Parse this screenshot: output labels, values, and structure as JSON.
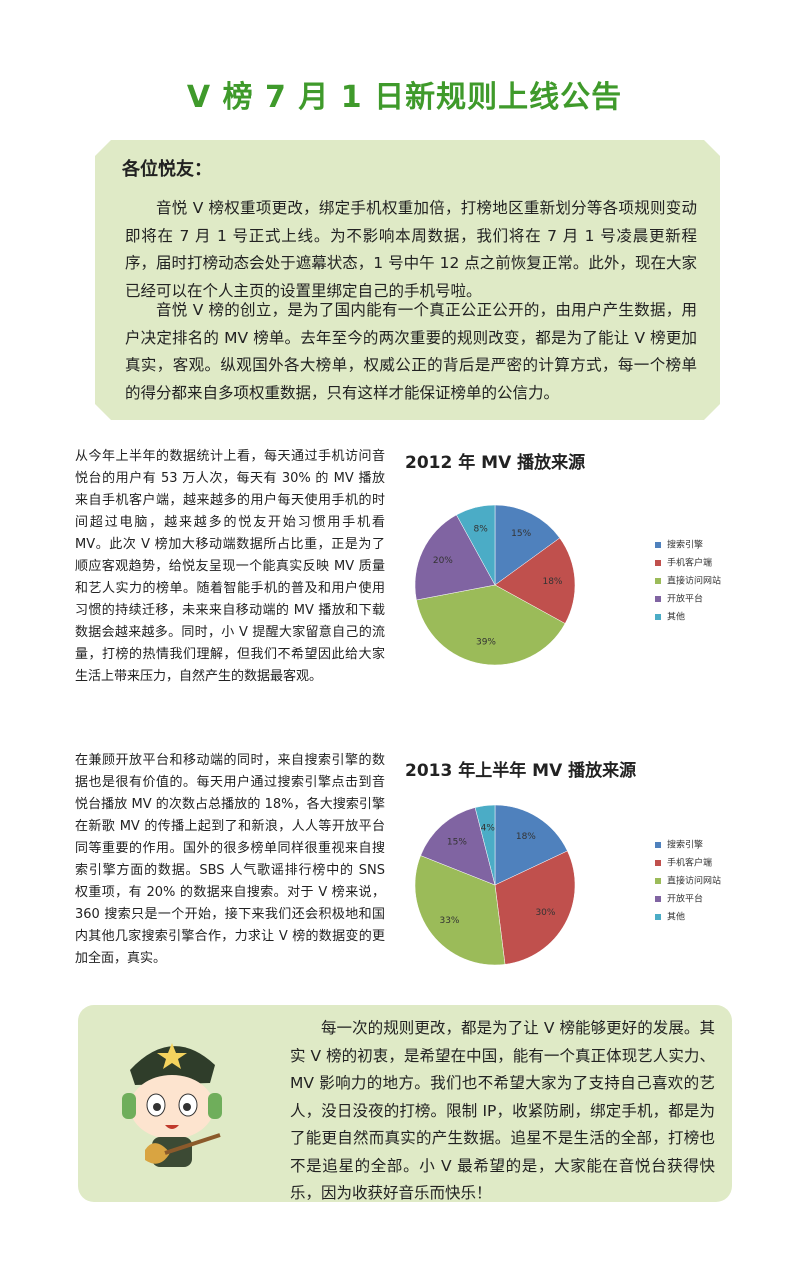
{
  "header": {
    "title": "V 榜 7 月 1 日新规则上线公告"
  },
  "intro": {
    "greeting": "各位悦友：",
    "paragraphs": [
      "音悦 V 榜权重项更改，绑定手机权重加倍，打榜地区重新划分等各项规则变动即将在 7 月 1 号正式上线。为不影响本周数据，我们将在 7 月 1 号凌晨更新程序，届时打榜动态会处于遮幕状态，1 号中午 12 点之前恢复正常。此外，现在大家已经可以在个人主页的设置里绑定自己的手机号啦。",
      "音悦 V 榜的创立，是为了国内能有一个真正公正公开的，由用户产生数据，用户决定排名的 MV 榜单。去年至今的两次重要的规则改变，都是为了能让 V 榜更加真实，客观。纵观国外各大榜单，权威公正的背后是严密的计算方式，每一个榜单的得分都来自多项权重数据，只有这样才能保证榜单的公信力。"
    ]
  },
  "sections": [
    "从今年上半年的数据统计上看，每天通过手机访问音悦台的用户有 53 万人次，每天有 30% 的 MV 播放来自手机客户端，越来越多的用户每天使用手机的时间超过电脑，越来越多的悦友开始习惯用手机看 MV。此次 V 榜加大移动端数据所占比重，正是为了顺应客观趋势，给悦友呈现一个能真实反映 MV 质量和艺人实力的榜单。随着智能手机的普及和用户使用习惯的持续迁移，未来来自移动端的 MV 播放和下载数据会越来越多。同时，小 V 提醒大家留意自己的流量，打榜的热情我们理解，但我们不希望因此给大家生活上带来压力，自然产生的数据最客观。",
    "在兼顾开放平台和移动端的同时，来自搜索引擎的数据也是很有价值的。每天用户通过搜索引擎点击到音悦台播放 MV 的次数占总播放的 18%，各大搜索引擎在新歌 MV 的传播上起到了和新浪，人人等开放平台同等重要的作用。国外的很多榜单同样很重视来自搜索引擎方面的数据。SBS 人气歌谣排行榜中的 SNS 权重项，有 20% 的数据来自搜索。对于 V 榜来说，360 搜索只是一个开始，接下来我们还会积极地和国内其他几家搜索引擎合作，力求让 V 榜的数据变的更加全面，真实。"
  ],
  "chart_data": [
    {
      "type": "pie",
      "title": "2012 年 MV 播放来源",
      "categories": [
        "搜索引擎",
        "手机客户端",
        "直接访问网站",
        "开放平台",
        "其他"
      ],
      "values": [
        15,
        18,
        39,
        20,
        8
      ],
      "value_labels": [
        "15%",
        "18%",
        "39%",
        "20%",
        "8%"
      ],
      "colors": [
        "#4f81bd",
        "#c0504d",
        "#9bbb59",
        "#8064a2",
        "#4bacc6"
      ],
      "legend": "right"
    },
    {
      "type": "pie",
      "title": "2013 年上半年 MV 播放来源",
      "categories": [
        "搜索引擎",
        "手机客户端",
        "直接访问网站",
        "开放平台",
        "其他"
      ],
      "values": [
        18,
        30,
        33,
        15,
        4
      ],
      "value_labels": [
        "18%",
        "30%",
        "33%",
        "15%",
        "4%"
      ],
      "colors": [
        "#4f81bd",
        "#c0504d",
        "#9bbb59",
        "#8064a2",
        "#4bacc6"
      ],
      "legend": "right"
    }
  ],
  "footer": {
    "text": "每一次的规则更改，都是为了让 V 榜能够更好的发展。其实 V 榜的初衷，是希望在中国，能有一个真正体现艺人实力、MV 影响力的地方。我们也不希望大家为了支持自己喜欢的艺人，没日没夜的打榜。限制 IP，收紧防刷，绑定手机，都是为了能更自然而真实的产生数据。追星不是生活的全部，打榜也不是追星的全部。小 V 最希望的是，大家能在音悦台获得快乐，因为收获好音乐而快乐！"
  }
}
